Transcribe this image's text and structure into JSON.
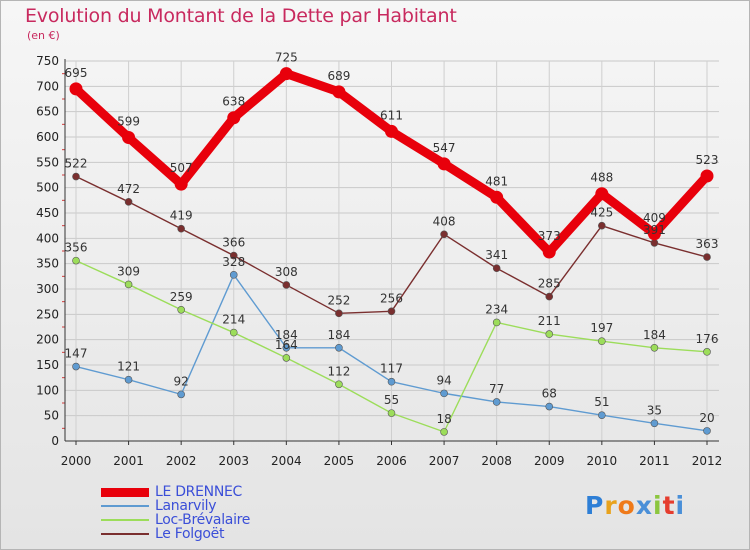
{
  "title": "Evolution du Montant de la Dette par Habitant",
  "subtitle": "(en €)",
  "logo": {
    "letters": [
      "P",
      "r",
      "o",
      "x",
      "i",
      "t",
      "i"
    ],
    "colors": [
      "#2e7fd6",
      "#e8a21c",
      "#ef7a1a",
      "#4a8fd8",
      "#8cc63f",
      "#e53d2f",
      "#4a8fd8"
    ]
  },
  "chart_data": {
    "type": "line",
    "x": [
      "2000",
      "2001",
      "2002",
      "2003",
      "2004",
      "2005",
      "2006",
      "2007",
      "2008",
      "2009",
      "2010",
      "2011",
      "2012"
    ],
    "ylim": [
      0,
      750
    ],
    "yticks": [
      0,
      50,
      100,
      150,
      200,
      250,
      300,
      350,
      400,
      450,
      500,
      550,
      600,
      650,
      700,
      750
    ],
    "grid": true,
    "legend_position": "bottom-left",
    "series": [
      {
        "name": "LE DRENNEC",
        "color": "#e8000b",
        "values": [
          695,
          599,
          507,
          638,
          725,
          689,
          611,
          547,
          481,
          373,
          488,
          409,
          523
        ]
      },
      {
        "name": "Lanarvily",
        "color": "#5f9bd1",
        "values": [
          147,
          121,
          92,
          328,
          184,
          184,
          117,
          94,
          77,
          68,
          51,
          35,
          20
        ]
      },
      {
        "name": "Loc-Brévalaire",
        "color": "#9cdd5a",
        "values": [
          356,
          309,
          259,
          214,
          164,
          112,
          55,
          18,
          234,
          211,
          197,
          184,
          176
        ]
      },
      {
        "name": "Le Folgoët",
        "color": "#7a2f2f",
        "values": [
          522,
          472,
          419,
          366,
          308,
          252,
          256,
          408,
          341,
          285,
          425,
          391,
          363
        ]
      }
    ]
  }
}
